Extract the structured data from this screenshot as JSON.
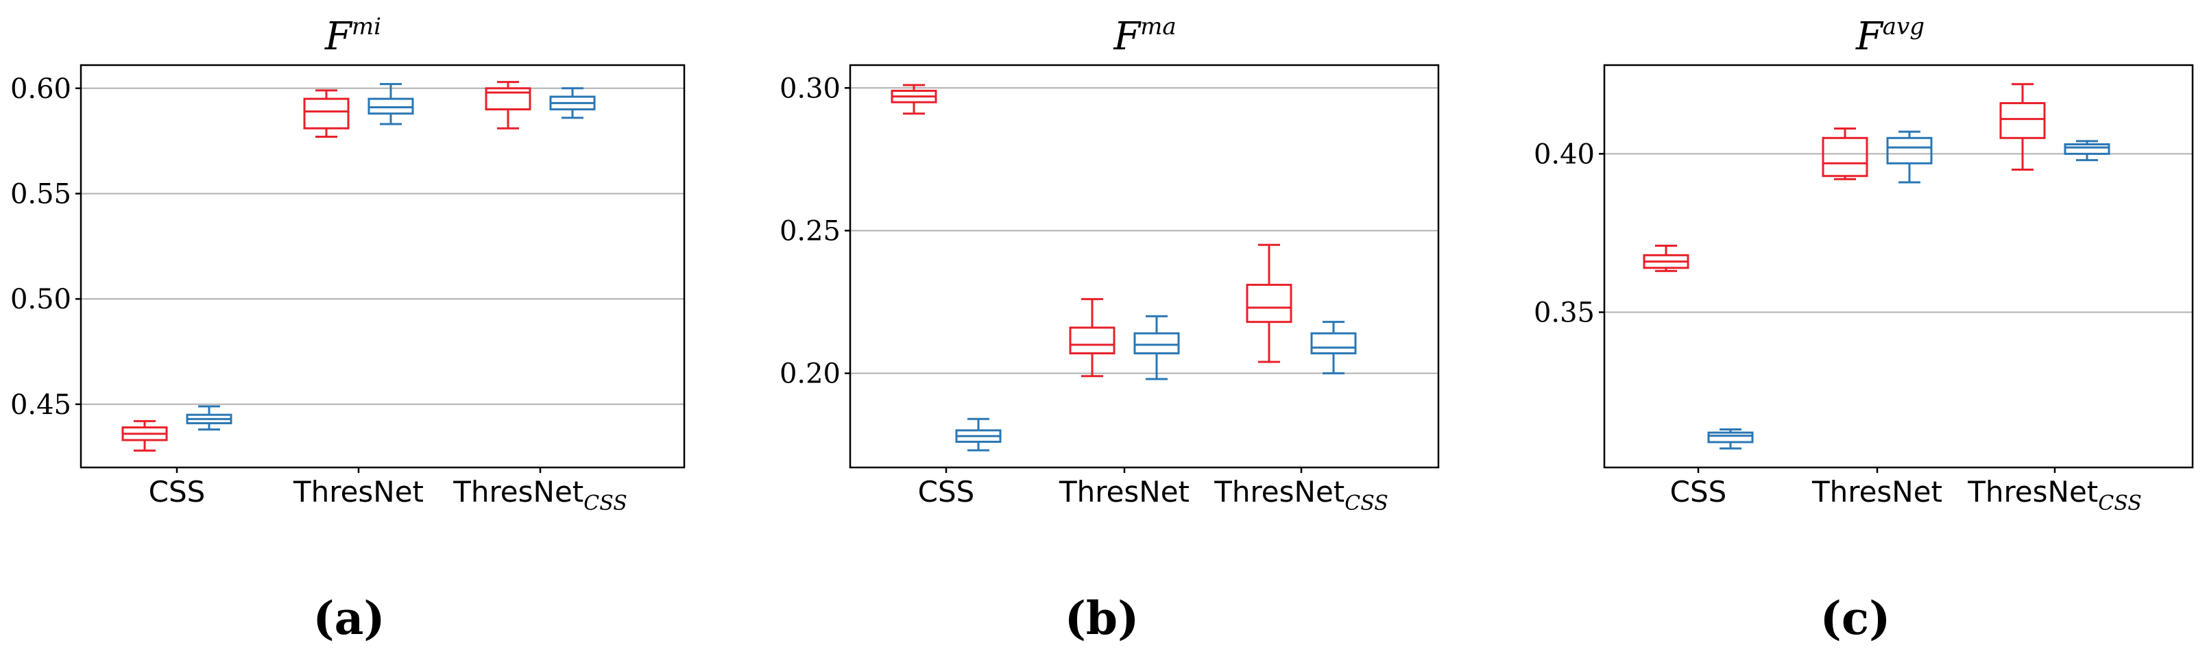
{
  "chart_data": [
    {
      "type": "box",
      "panel_label": "(a)",
      "title": {
        "base": "F",
        "sup": "mi"
      },
      "categories": [
        {
          "text": "CSS",
          "sub": ""
        },
        {
          "text": "ThresNet",
          "sub": ""
        },
        {
          "text": "ThresNet",
          "sub": "CSS"
        }
      ],
      "series_colors": [
        "#e8202a",
        "#2a77b4"
      ],
      "ylim": [
        0.42,
        0.611
      ],
      "yticks": [
        0.45,
        0.5,
        0.55,
        0.6
      ],
      "ytick_labels": [
        "0.45",
        "0.50",
        "0.55",
        "0.60"
      ],
      "grid": true,
      "boxes": [
        [
          {
            "whislo": 0.428,
            "q1": 0.433,
            "med": 0.436,
            "q3": 0.439,
            "whishi": 0.442
          },
          {
            "whislo": 0.577,
            "q1": 0.581,
            "med": 0.589,
            "q3": 0.595,
            "whishi": 0.599
          },
          {
            "whislo": 0.581,
            "q1": 0.59,
            "med": 0.598,
            "q3": 0.6,
            "whishi": 0.603
          }
        ],
        [
          {
            "whislo": 0.438,
            "q1": 0.441,
            "med": 0.443,
            "q3": 0.445,
            "whishi": 0.449
          },
          {
            "whislo": 0.583,
            "q1": 0.588,
            "med": 0.591,
            "q3": 0.595,
            "whishi": 0.602
          },
          {
            "whislo": 0.586,
            "q1": 0.59,
            "med": 0.593,
            "q3": 0.596,
            "whishi": 0.6
          }
        ]
      ]
    },
    {
      "type": "box",
      "panel_label": "(b)",
      "title": {
        "base": "F",
        "sup": "ma"
      },
      "categories": [
        {
          "text": "CSS",
          "sub": ""
        },
        {
          "text": "ThresNet",
          "sub": ""
        },
        {
          "text": "ThresNet",
          "sub": "CSS"
        }
      ],
      "series_colors": [
        "#e8202a",
        "#2a77b4"
      ],
      "ylim": [
        0.167,
        0.308
      ],
      "yticks": [
        0.2,
        0.25,
        0.3
      ],
      "ytick_labels": [
        "0.20",
        "0.25",
        "0.30"
      ],
      "grid": true,
      "boxes": [
        [
          {
            "whislo": 0.291,
            "q1": 0.295,
            "med": 0.297,
            "q3": 0.299,
            "whishi": 0.301
          },
          {
            "whislo": 0.199,
            "q1": 0.207,
            "med": 0.21,
            "q3": 0.216,
            "whishi": 0.226
          },
          {
            "whislo": 0.204,
            "q1": 0.218,
            "med": 0.223,
            "q3": 0.231,
            "whishi": 0.245
          }
        ],
        [
          {
            "whislo": 0.173,
            "q1": 0.176,
            "med": 0.178,
            "q3": 0.18,
            "whishi": 0.184
          },
          {
            "whislo": 0.198,
            "q1": 0.207,
            "med": 0.21,
            "q3": 0.214,
            "whishi": 0.22
          },
          {
            "whislo": 0.2,
            "q1": 0.207,
            "med": 0.209,
            "q3": 0.214,
            "whishi": 0.218
          }
        ]
      ]
    },
    {
      "type": "box",
      "panel_label": "(c)",
      "title": {
        "base": "F",
        "sup": "avg"
      },
      "categories": [
        {
          "text": "CSS",
          "sub": ""
        },
        {
          "text": "ThresNet",
          "sub": ""
        },
        {
          "text": "ThresNet",
          "sub": "CSS"
        }
      ],
      "series_colors": [
        "#e8202a",
        "#2a77b4"
      ],
      "ylim": [
        0.301,
        0.428
      ],
      "yticks": [
        0.35,
        0.4
      ],
      "ytick_labels": [
        "0.35",
        "0.40"
      ],
      "grid": true,
      "boxes": [
        [
          {
            "whislo": 0.363,
            "q1": 0.364,
            "med": 0.366,
            "q3": 0.368,
            "whishi": 0.371
          },
          {
            "whislo": 0.392,
            "q1": 0.393,
            "med": 0.397,
            "q3": 0.405,
            "whishi": 0.408
          },
          {
            "whislo": 0.395,
            "q1": 0.405,
            "med": 0.411,
            "q3": 0.416,
            "whishi": 0.422
          }
        ],
        [
          {
            "whislo": 0.307,
            "q1": 0.309,
            "med": 0.311,
            "q3": 0.312,
            "whishi": 0.313
          },
          {
            "whislo": 0.391,
            "q1": 0.397,
            "med": 0.402,
            "q3": 0.405,
            "whishi": 0.407
          },
          {
            "whislo": 0.398,
            "q1": 0.4,
            "med": 0.402,
            "q3": 0.403,
            "whishi": 0.404
          }
        ]
      ]
    }
  ]
}
